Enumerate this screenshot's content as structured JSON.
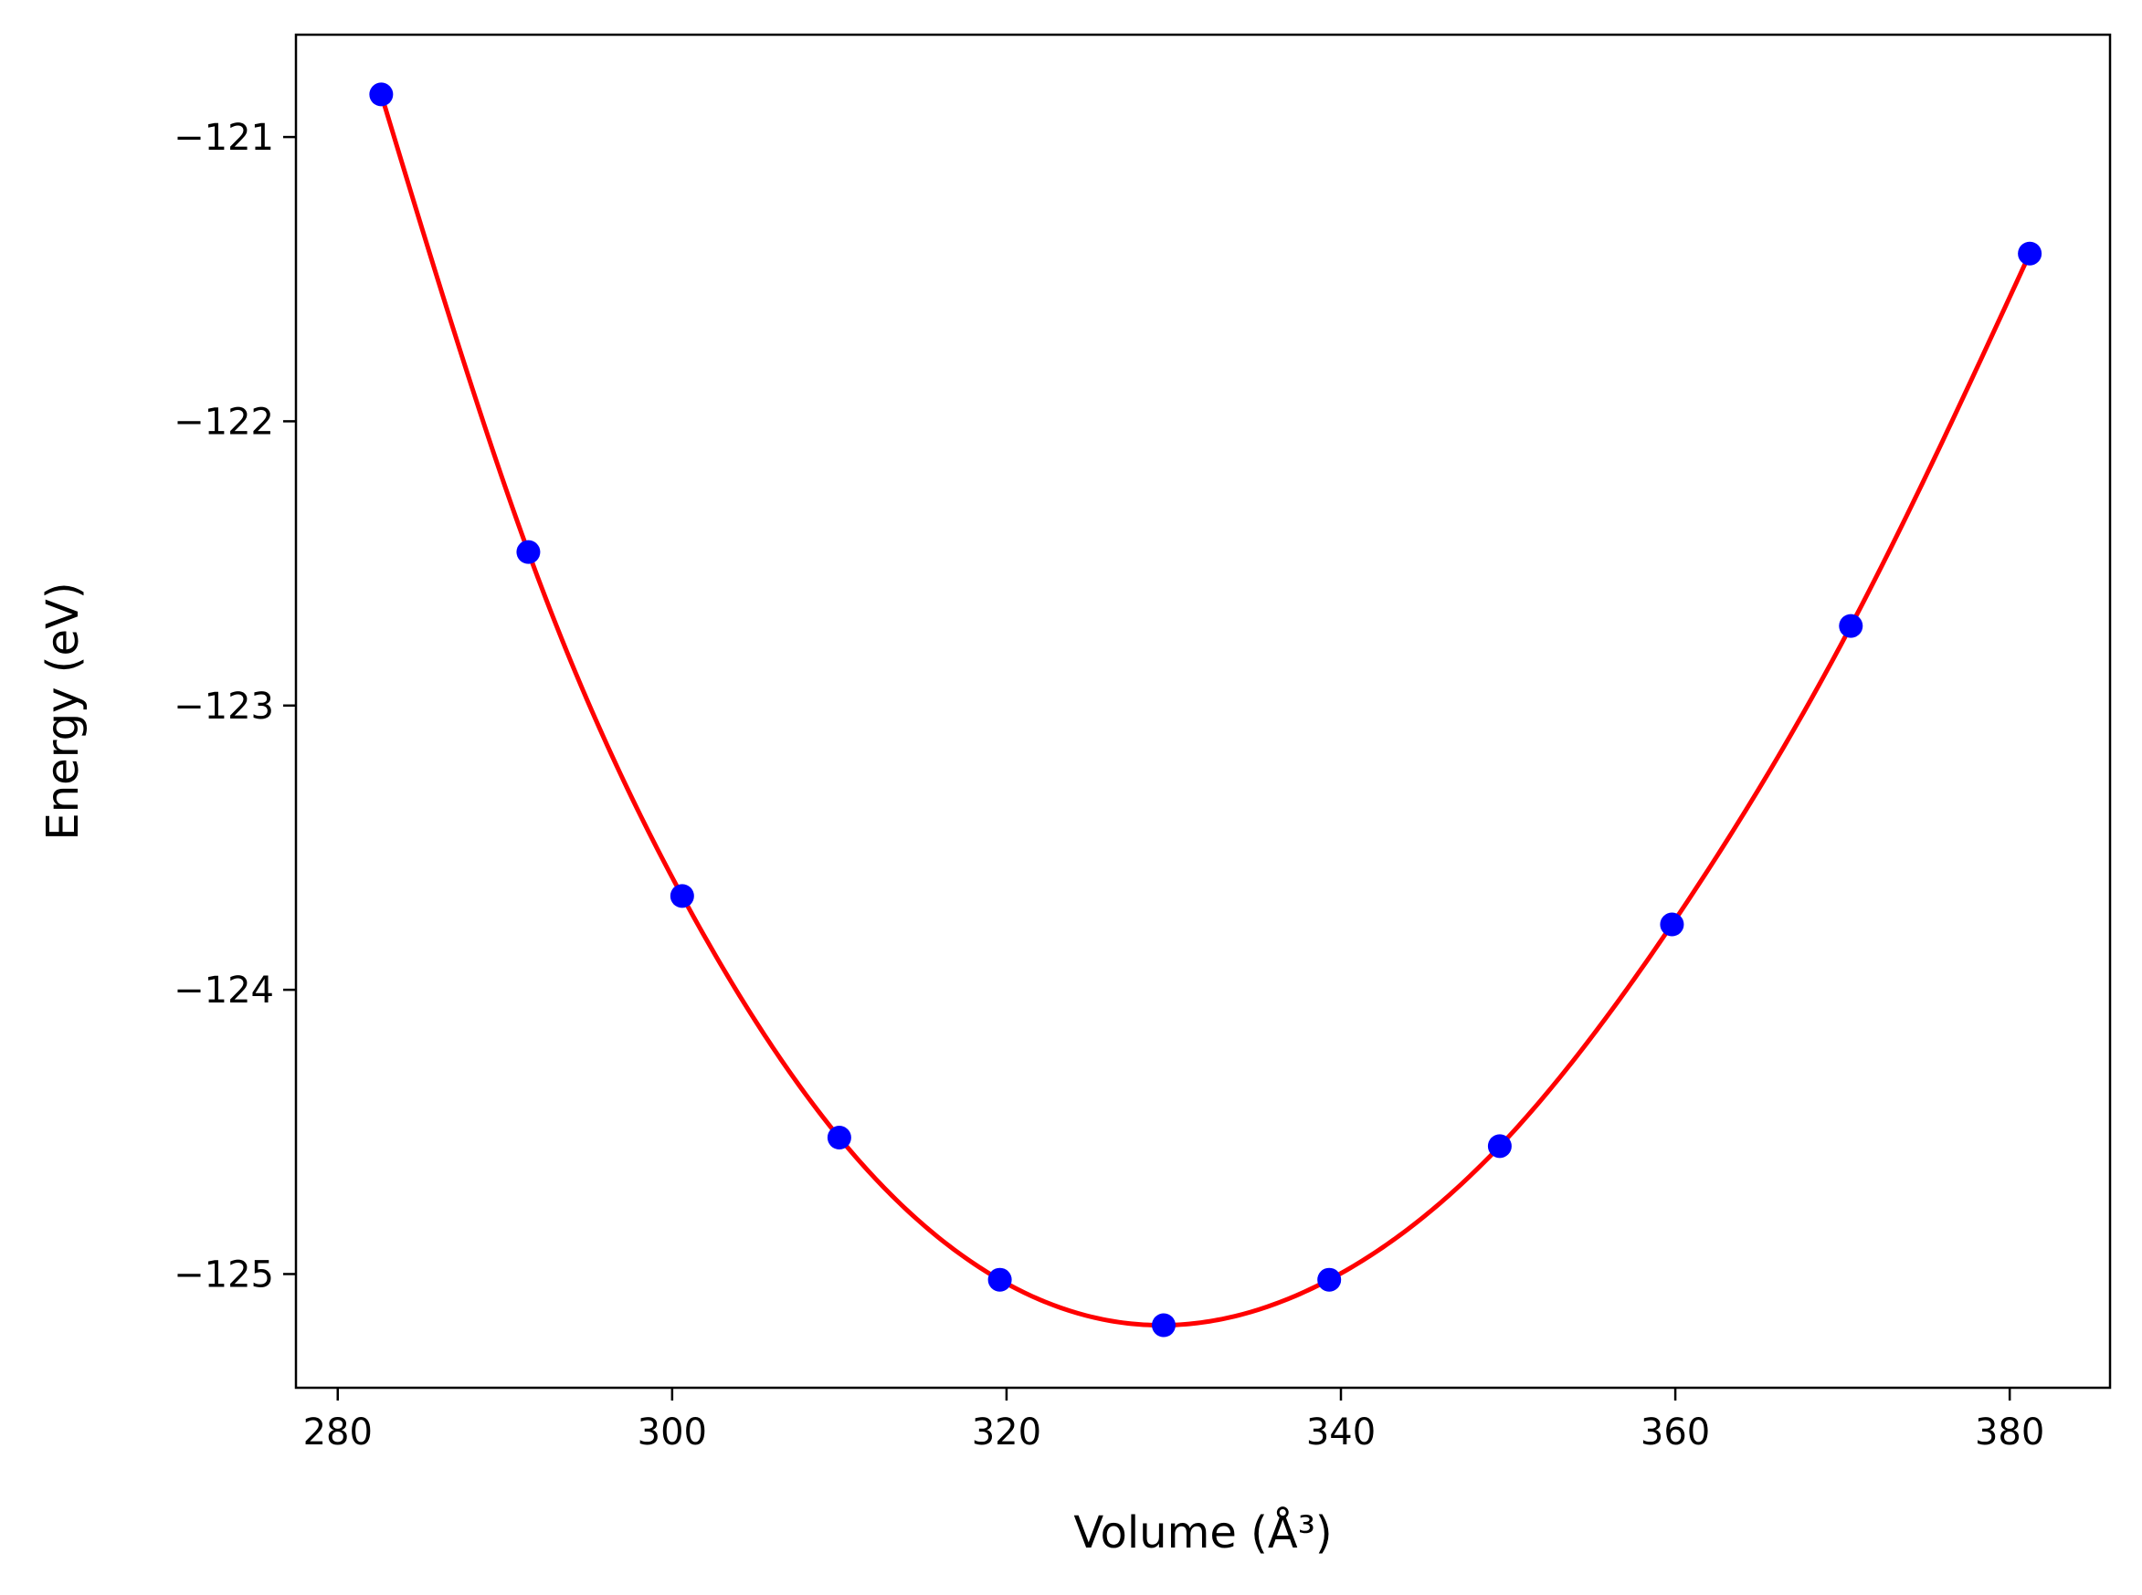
{
  "chart_data": {
    "type": "scatter",
    "title": "",
    "xlabel": "Volume (Å³)",
    "ylabel": "Energy (eV)",
    "xlim": [
      277.5,
      386.0
    ],
    "ylim": [
      -125.4,
      -120.64
    ],
    "x_ticks": [
      280,
      300,
      320,
      340,
      360,
      380
    ],
    "x_tick_labels": [
      "280",
      "300",
      "320",
      "340",
      "360",
      "380"
    ],
    "y_ticks": [
      -121,
      -122,
      -123,
      -124,
      -125
    ],
    "y_tick_labels": [
      "−121",
      "−122",
      "−123",
      "−124",
      "−125"
    ],
    "grid": false,
    "series": [
      {
        "kind": "points",
        "color": "#0000ff",
        "x": [
          282.6,
          291.4,
          300.6,
          310.0,
          319.6,
          329.4,
          339.3,
          349.5,
          359.8,
          370.5,
          381.2
        ],
        "y": [
          -120.85,
          -122.46,
          -123.67,
          -124.52,
          -125.02,
          -125.18,
          -125.02,
          -124.55,
          -123.77,
          -122.72,
          -121.41
        ]
      },
      {
        "kind": "fit-curve",
        "color": "#ff0000",
        "x": [
          282.6,
          291.4,
          300.6,
          310.0,
          319.6,
          329.4,
          339.3,
          349.5,
          359.8,
          370.5,
          381.2
        ],
        "y": [
          -120.85,
          -122.46,
          -123.67,
          -124.52,
          -125.02,
          -125.18,
          -125.02,
          -124.55,
          -123.77,
          -122.72,
          -121.41
        ]
      }
    ]
  }
}
